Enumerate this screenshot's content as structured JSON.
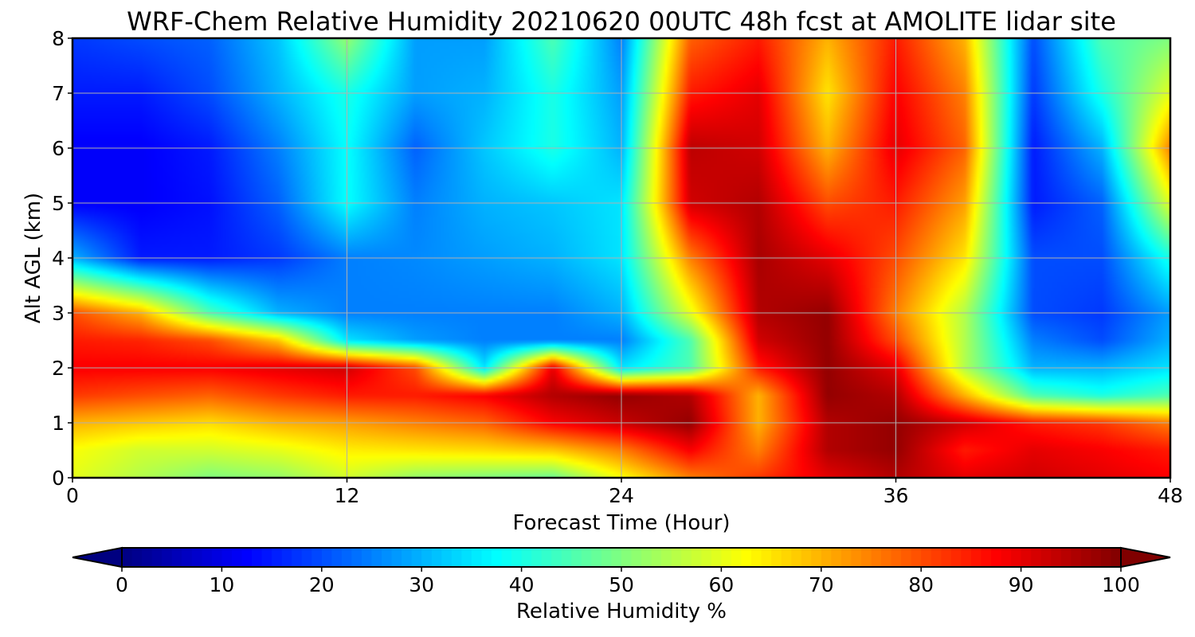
{
  "chart_data": {
    "type": "heatmap",
    "title": "WRF-Chem Relative Humidity 20210620 00UTC 48h fcst at AMOLITE lidar site",
    "xlabel": "Forecast Time (Hour)",
    "ylabel": "Alt AGL (km)",
    "xlim": [
      0,
      48
    ],
    "ylim": [
      0,
      8
    ],
    "x_ticks": [
      0,
      12,
      24,
      36,
      48
    ],
    "y_ticks": [
      0,
      1,
      2,
      3,
      4,
      5,
      6,
      7,
      8
    ],
    "grid": true,
    "colormap": "jet",
    "colorbar": {
      "label": "Relative Humidity %",
      "orientation": "horizontal",
      "placement": "bottom",
      "extend": "both",
      "range": [
        0,
        100
      ],
      "ticks": [
        0,
        10,
        20,
        30,
        40,
        50,
        60,
        70,
        80,
        90,
        100
      ]
    },
    "times_hour": [
      0,
      3,
      6,
      9,
      12,
      15,
      18,
      21,
      24,
      27,
      30,
      33,
      36,
      39,
      42,
      45,
      48
    ],
    "altitudes_km": [
      0,
      0.5,
      1,
      1.5,
      2,
      2.5,
      3,
      4,
      5,
      6,
      7,
      8
    ],
    "rh_percent": [
      [
        60,
        55,
        50,
        52,
        58,
        52,
        50,
        48,
        62,
        75,
        82,
        90,
        95,
        90,
        92,
        90,
        88
      ],
      [
        62,
        58,
        58,
        60,
        64,
        65,
        66,
        68,
        75,
        88,
        75,
        95,
        98,
        85,
        90,
        88,
        85
      ],
      [
        70,
        68,
        66,
        70,
        72,
        75,
        78,
        88,
        93,
        98,
        70,
        95,
        98,
        92,
        85,
        82,
        75
      ],
      [
        82,
        80,
        78,
        82,
        85,
        85,
        88,
        95,
        98,
        95,
        70,
        98,
        95,
        70,
        45,
        40,
        45
      ],
      [
        88,
        88,
        88,
        90,
        92,
        80,
        35,
        90,
        35,
        45,
        85,
        98,
        90,
        55,
        30,
        30,
        35
      ],
      [
        85,
        84,
        80,
        68,
        35,
        28,
        25,
        25,
        25,
        45,
        92,
        98,
        80,
        55,
        25,
        20,
        30
      ],
      [
        80,
        70,
        45,
        30,
        25,
        25,
        25,
        25,
        30,
        60,
        95,
        98,
        75,
        55,
        20,
        18,
        28
      ],
      [
        30,
        15,
        15,
        18,
        25,
        26,
        28,
        30,
        35,
        75,
        96,
        90,
        80,
        65,
        20,
        20,
        40
      ],
      [
        12,
        12,
        14,
        22,
        38,
        25,
        30,
        32,
        35,
        92,
        95,
        80,
        85,
        72,
        15,
        22,
        60
      ],
      [
        12,
        12,
        15,
        25,
        38,
        22,
        32,
        40,
        30,
        94,
        92,
        70,
        90,
        78,
        15,
        30,
        75
      ],
      [
        15,
        15,
        20,
        30,
        40,
        28,
        30,
        40,
        28,
        85,
        90,
        65,
        88,
        75,
        18,
        40,
        60
      ],
      [
        18,
        20,
        22,
        32,
        52,
        28,
        28,
        45,
        25,
        78,
        85,
        70,
        85,
        70,
        20,
        45,
        50
      ]
    ]
  }
}
